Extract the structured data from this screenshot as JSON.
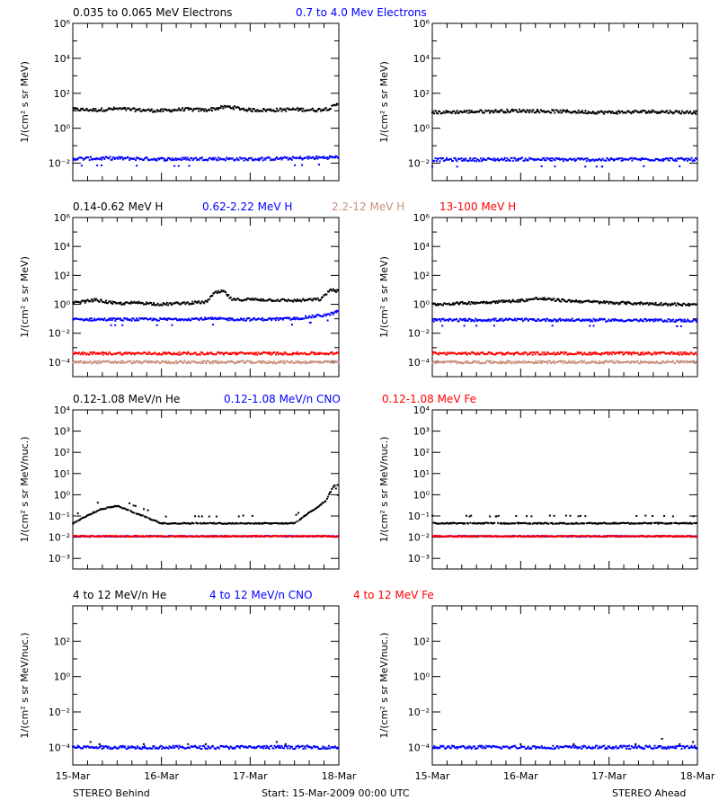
{
  "footer": {
    "left": "STEREO Behind",
    "center": "Start: 15-Mar-2009 00:00 UTC",
    "right": "STEREO Ahead"
  },
  "colors": {
    "black": "#000000",
    "blue": "#0000ff",
    "tan": "#c8907a",
    "red": "#ff0000"
  },
  "x_axis": {
    "tick_labels": [
      "15-Mar",
      "16-Mar",
      "17-Mar",
      "18-Mar"
    ],
    "range_days": [
      0,
      3
    ],
    "minor_ticks_per_day": 6
  },
  "rows": [
    {
      "id": "electrons",
      "ylabel": "1/(cm² s sr MeV)",
      "log_range": [
        -3,
        6
      ],
      "tick_exps": [
        -2,
        0,
        2,
        4,
        6
      ],
      "minor_per_decade": true,
      "legend": [
        {
          "text": "0.035 to 0.065 MeV Electrons",
          "color": "#000000"
        },
        {
          "text": "0.7 to 4.0 Mev Electrons",
          "color": "#0000ff"
        }
      ]
    },
    {
      "id": "protons",
      "ylabel": "1/(cm² s sr MeV)",
      "log_range": [
        -5,
        6
      ],
      "tick_exps": [
        -4,
        -2,
        0,
        2,
        4,
        6
      ],
      "minor_per_decade": true,
      "legend": [
        {
          "text": "0.14-0.62 MeV H",
          "color": "#000000"
        },
        {
          "text": "0.62-2.22 MeV H",
          "color": "#0000ff"
        },
        {
          "text": "2.2-12 MeV H",
          "color": "#c8907a"
        },
        {
          "text": "13-100 MeV H",
          "color": "#ff0000"
        }
      ]
    },
    {
      "id": "low-energy-ions",
      "ylabel": "1/(cm² s sr MeV/nuc.)",
      "log_range": [
        -3.5,
        4
      ],
      "tick_exps": [
        -3,
        -2,
        -1,
        0,
        1,
        2,
        3,
        4
      ],
      "minor_per_decade": false,
      "legend": [
        {
          "text": "0.12-1.08 MeV/n He",
          "color": "#000000"
        },
        {
          "text": "0.12-1.08 MeV/n CNO",
          "color": "#0000ff"
        },
        {
          "text": "0.12-1.08 MeV Fe",
          "color": "#ff0000"
        }
      ]
    },
    {
      "id": "high-energy-ions",
      "ylabel": "1/(cm² s sr MeV/nuc.)",
      "log_range": [
        -5,
        4
      ],
      "tick_exps": [
        -4,
        -2,
        0,
        2
      ],
      "minor_per_decade": false,
      "legend": [
        {
          "text": "4 to 12 MeV/n He",
          "color": "#000000"
        },
        {
          "text": "4 to 12 MeV/n CNO",
          "color": "#0000ff"
        },
        {
          "text": "4 to 12 MeV Fe",
          "color": "#ff0000"
        }
      ]
    }
  ],
  "chart_data": [
    {
      "type": "scatter",
      "panel": "behind-electrons",
      "y_scale": "log",
      "x_unit": "days since 15-Mar-2009",
      "ylim_exp": [
        -3,
        6
      ],
      "series": [
        {
          "name": "0.035 to 0.065 MeV Electrons",
          "color": "#000000",
          "x": [
            0,
            0.25,
            0.5,
            0.75,
            1.0,
            1.25,
            1.5,
            1.75,
            2.0,
            2.25,
            2.5,
            2.75,
            2.9,
            3.0
          ],
          "y": [
            12,
            11,
            13,
            11,
            10,
            12,
            11,
            17,
            11,
            11,
            12,
            11,
            14,
            25
          ]
        },
        {
          "name": "0.7 to 4.0 Mev Electrons",
          "color": "#0000ff",
          "x": [
            0,
            0.5,
            1.0,
            1.5,
            2.0,
            2.5,
            3.0
          ],
          "y": [
            0.018,
            0.019,
            0.017,
            0.018,
            0.017,
            0.019,
            0.022
          ]
        }
      ]
    },
    {
      "type": "scatter",
      "panel": "ahead-electrons",
      "y_scale": "log",
      "x_unit": "days since 15-Mar-2009",
      "ylim_exp": [
        -3,
        6
      ],
      "series": [
        {
          "name": "0.035 to 0.065 MeV Electrons",
          "color": "#000000",
          "x": [
            0,
            0.5,
            1.0,
            1.5,
            2.0,
            2.5,
            3.0
          ],
          "y": [
            8,
            9,
            10,
            9,
            8,
            9,
            8
          ]
        },
        {
          "name": "0.7 to 4.0 Mev Electrons",
          "color": "#0000ff",
          "x": [
            0,
            0.5,
            1.0,
            1.5,
            2.0,
            2.5,
            3.0
          ],
          "y": [
            0.016,
            0.016,
            0.017,
            0.016,
            0.016,
            0.017,
            0.016
          ]
        }
      ]
    },
    {
      "type": "scatter",
      "panel": "behind-protons",
      "y_scale": "log",
      "x_unit": "days since 15-Mar-2009",
      "ylim_exp": [
        -5,
        6
      ],
      "series": [
        {
          "name": "0.14-0.62 MeV H",
          "color": "#000000",
          "x": [
            0,
            0.25,
            0.5,
            0.75,
            1.0,
            1.25,
            1.5,
            1.6,
            1.7,
            1.8,
            2.0,
            2.5,
            2.8,
            2.9,
            3.0
          ],
          "y": [
            1.2,
            2.0,
            1.1,
            1.3,
            1.0,
            1.2,
            1.4,
            6,
            8,
            2,
            2.2,
            1.8,
            2.2,
            10,
            8
          ]
        },
        {
          "name": "0.62-2.22 MeV H",
          "color": "#0000ff",
          "x": [
            0,
            0.5,
            1.0,
            1.5,
            2.0,
            2.5,
            2.9,
            3.0
          ],
          "y": [
            0.09,
            0.09,
            0.09,
            0.1,
            0.09,
            0.1,
            0.2,
            0.35
          ]
        },
        {
          "name": "2.2-12 MeV H",
          "color": "#c8907a",
          "x": [
            0,
            1,
            2,
            3
          ],
          "y": [
            0.0001,
            0.0001,
            0.0001,
            0.0001
          ]
        },
        {
          "name": "13-100 MeV H",
          "color": "#ff0000",
          "x": [
            0,
            1,
            2,
            3
          ],
          "y": [
            0.0004,
            0.0004,
            0.0004,
            0.0004
          ]
        }
      ]
    },
    {
      "type": "scatter",
      "panel": "ahead-protons",
      "y_scale": "log",
      "x_unit": "days since 15-Mar-2009",
      "ylim_exp": [
        -5,
        6
      ],
      "series": [
        {
          "name": "0.14-0.62 MeV H",
          "color": "#000000",
          "x": [
            0,
            0.5,
            1.0,
            1.2,
            1.5,
            2.0,
            2.5,
            3.0
          ],
          "y": [
            1.0,
            1.3,
            1.8,
            2.5,
            1.8,
            1.3,
            1.1,
            0.9
          ]
        },
        {
          "name": "0.62-2.22 MeV H",
          "color": "#0000ff",
          "x": [
            0,
            1,
            2,
            3
          ],
          "y": [
            0.08,
            0.085,
            0.08,
            0.075
          ]
        },
        {
          "name": "2.2-12 MeV H",
          "color": "#c8907a",
          "x": [
            0,
            1,
            2,
            3
          ],
          "y": [
            0.0001,
            0.0001,
            0.0001,
            0.0001
          ]
        },
        {
          "name": "13-100 MeV H",
          "color": "#ff0000",
          "x": [
            0,
            1,
            2,
            3
          ],
          "y": [
            0.0004,
            0.0004,
            0.0004,
            0.0004
          ]
        }
      ]
    },
    {
      "type": "scatter",
      "panel": "behind-low-energy-ions",
      "y_scale": "log",
      "x_unit": "days since 15-Mar-2009",
      "ylim_exp": [
        -3.5,
        4
      ],
      "series": [
        {
          "name": "0.12-1.08 MeV/n He",
          "color": "#000000",
          "x": [
            0,
            0.3,
            0.5,
            1.0,
            1.5,
            2.0,
            2.5,
            2.85,
            2.95,
            3.0
          ],
          "y": [
            0.045,
            0.2,
            0.3,
            0.045,
            0.045,
            0.045,
            0.045,
            0.5,
            3,
            0.8
          ]
        },
        {
          "name": "0.12-1.08 MeV/n CNO",
          "color": "#0000ff",
          "x": [
            0,
            1,
            2,
            3
          ],
          "y": [
            0.011,
            0.011,
            0.011,
            0.011
          ]
        },
        {
          "name": "0.12-1.08 MeV Fe",
          "color": "#ff0000",
          "x": [
            0,
            1,
            2,
            3
          ],
          "y": [
            0.011,
            0.011,
            0.011,
            0.011
          ]
        }
      ]
    },
    {
      "type": "scatter",
      "panel": "ahead-low-energy-ions",
      "y_scale": "log",
      "x_unit": "days since 15-Mar-2009",
      "ylim_exp": [
        -3.5,
        4
      ],
      "series": [
        {
          "name": "0.12-1.08 MeV/n He",
          "color": "#000000",
          "x": [
            0,
            1,
            2,
            3
          ],
          "y": [
            0.045,
            0.045,
            0.045,
            0.045
          ]
        },
        {
          "name": "0.12-1.08 MeV/n CNO",
          "color": "#0000ff",
          "x": [
            0,
            1,
            2,
            3
          ],
          "y": [
            0.011,
            0.011,
            0.011,
            0.011
          ]
        },
        {
          "name": "0.12-1.08 MeV Fe",
          "color": "#ff0000",
          "x": [
            0,
            1,
            2,
            3
          ],
          "y": [
            0.011,
            0.011,
            0.011,
            0.011
          ]
        }
      ]
    },
    {
      "type": "scatter",
      "panel": "behind-high-energy-ions",
      "y_scale": "log",
      "x_unit": "days since 15-Mar-2009",
      "ylim_exp": [
        -5,
        4
      ],
      "series": [
        {
          "name": "4 to 12 MeV/n He",
          "color": "#000000",
          "x": [
            0.2,
            0.3,
            0.8,
            1.3,
            1.5,
            2.3,
            2.4
          ],
          "y": [
            0.0002,
            0.00015,
            0.00015,
            0.00015,
            0.00015,
            0.0002,
            0.00015
          ]
        },
        {
          "name": "4 to 12 MeV/n CNO",
          "color": "#0000ff",
          "x": [
            0,
            1,
            2,
            3
          ],
          "y": [
            0.0001,
            0.0001,
            0.0001,
            0.0001
          ]
        },
        {
          "name": "4 to 12 MeV Fe",
          "color": "#ff0000",
          "x": [],
          "y": []
        }
      ]
    },
    {
      "type": "scatter",
      "panel": "ahead-high-energy-ions",
      "y_scale": "log",
      "x_unit": "days since 15-Mar-2009",
      "ylim_exp": [
        -5,
        4
      ],
      "series": [
        {
          "name": "4 to 12 MeV/n He",
          "color": "#000000",
          "x": [
            1.0,
            1.6,
            2.3,
            2.6,
            2.8,
            2.95
          ],
          "y": [
            0.00015,
            0.00015,
            0.00015,
            0.0003,
            0.00015,
            0.0002
          ]
        },
        {
          "name": "4 to 12 MeV/n CNO",
          "color": "#0000ff",
          "x": [
            0,
            1,
            2,
            3
          ],
          "y": [
            0.0001,
            0.0001,
            0.0001,
            0.0001
          ]
        },
        {
          "name": "4 to 12 MeV Fe",
          "color": "#ff0000",
          "x": [],
          "y": []
        }
      ]
    }
  ]
}
